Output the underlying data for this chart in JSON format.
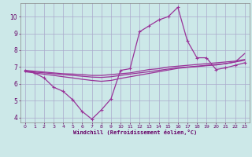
{
  "bg_color": "#cce8e8",
  "grid_color": "#aaaacc",
  "line_color": "#993399",
  "marker_color": "#993399",
  "xlabel": "Windchill (Refroidissement éolien,°C)",
  "xlabel_color": "#660066",
  "tick_color": "#660066",
  "xlim": [
    -0.5,
    23.5
  ],
  "ylim": [
    3.7,
    10.8
  ],
  "yticks": [
    4,
    5,
    6,
    7,
    8,
    9,
    10
  ],
  "xticks": [
    0,
    1,
    2,
    3,
    4,
    5,
    6,
    7,
    8,
    9,
    10,
    11,
    12,
    13,
    14,
    15,
    16,
    17,
    18,
    19,
    20,
    21,
    22,
    23
  ],
  "line1_x": [
    0,
    1,
    2,
    3,
    4,
    5,
    6,
    7,
    8,
    9,
    10,
    11,
    12,
    13,
    14,
    15,
    16,
    17,
    18,
    19,
    20,
    21,
    22,
    23
  ],
  "line1_y": [
    6.8,
    6.65,
    6.35,
    5.8,
    5.55,
    5.05,
    4.35,
    3.9,
    4.45,
    5.1,
    6.8,
    6.9,
    9.1,
    9.45,
    9.8,
    10.0,
    10.55,
    8.55,
    7.55,
    7.55,
    6.85,
    6.95,
    7.1,
    7.25
  ],
  "line2_x": [
    0,
    1,
    2,
    3,
    4,
    5,
    6,
    7,
    8,
    9,
    10,
    11,
    12,
    13,
    14,
    15,
    16,
    17,
    18,
    19,
    20,
    21,
    22,
    23
  ],
  "line2_y": [
    6.8,
    6.75,
    6.7,
    6.65,
    6.6,
    6.58,
    6.55,
    6.5,
    6.5,
    6.55,
    6.6,
    6.65,
    6.75,
    6.85,
    6.9,
    7.0,
    7.05,
    7.1,
    7.15,
    7.2,
    7.25,
    7.3,
    7.35,
    7.45
  ],
  "line3_x": [
    0,
    1,
    2,
    3,
    4,
    5,
    6,
    7,
    8,
    9,
    10,
    11,
    12,
    13,
    14,
    15,
    16,
    17,
    18,
    19,
    20,
    21,
    22,
    23
  ],
  "line3_y": [
    6.75,
    6.7,
    6.65,
    6.6,
    6.55,
    6.5,
    6.45,
    6.4,
    6.38,
    6.42,
    6.5,
    6.58,
    6.65,
    6.72,
    6.8,
    6.88,
    6.95,
    7.0,
    7.05,
    7.1,
    7.15,
    7.2,
    7.3,
    7.4
  ],
  "line4_x": [
    0,
    1,
    2,
    3,
    4,
    5,
    6,
    7,
    8,
    9,
    10,
    11,
    12,
    13,
    14,
    15,
    16,
    17,
    18,
    19,
    20,
    21,
    22,
    23
  ],
  "line4_y": [
    6.72,
    6.65,
    6.57,
    6.5,
    6.42,
    6.35,
    6.27,
    6.2,
    6.15,
    6.2,
    6.32,
    6.42,
    6.52,
    6.62,
    6.72,
    6.82,
    6.92,
    6.98,
    7.02,
    7.08,
    7.12,
    7.2,
    7.3,
    7.8
  ]
}
